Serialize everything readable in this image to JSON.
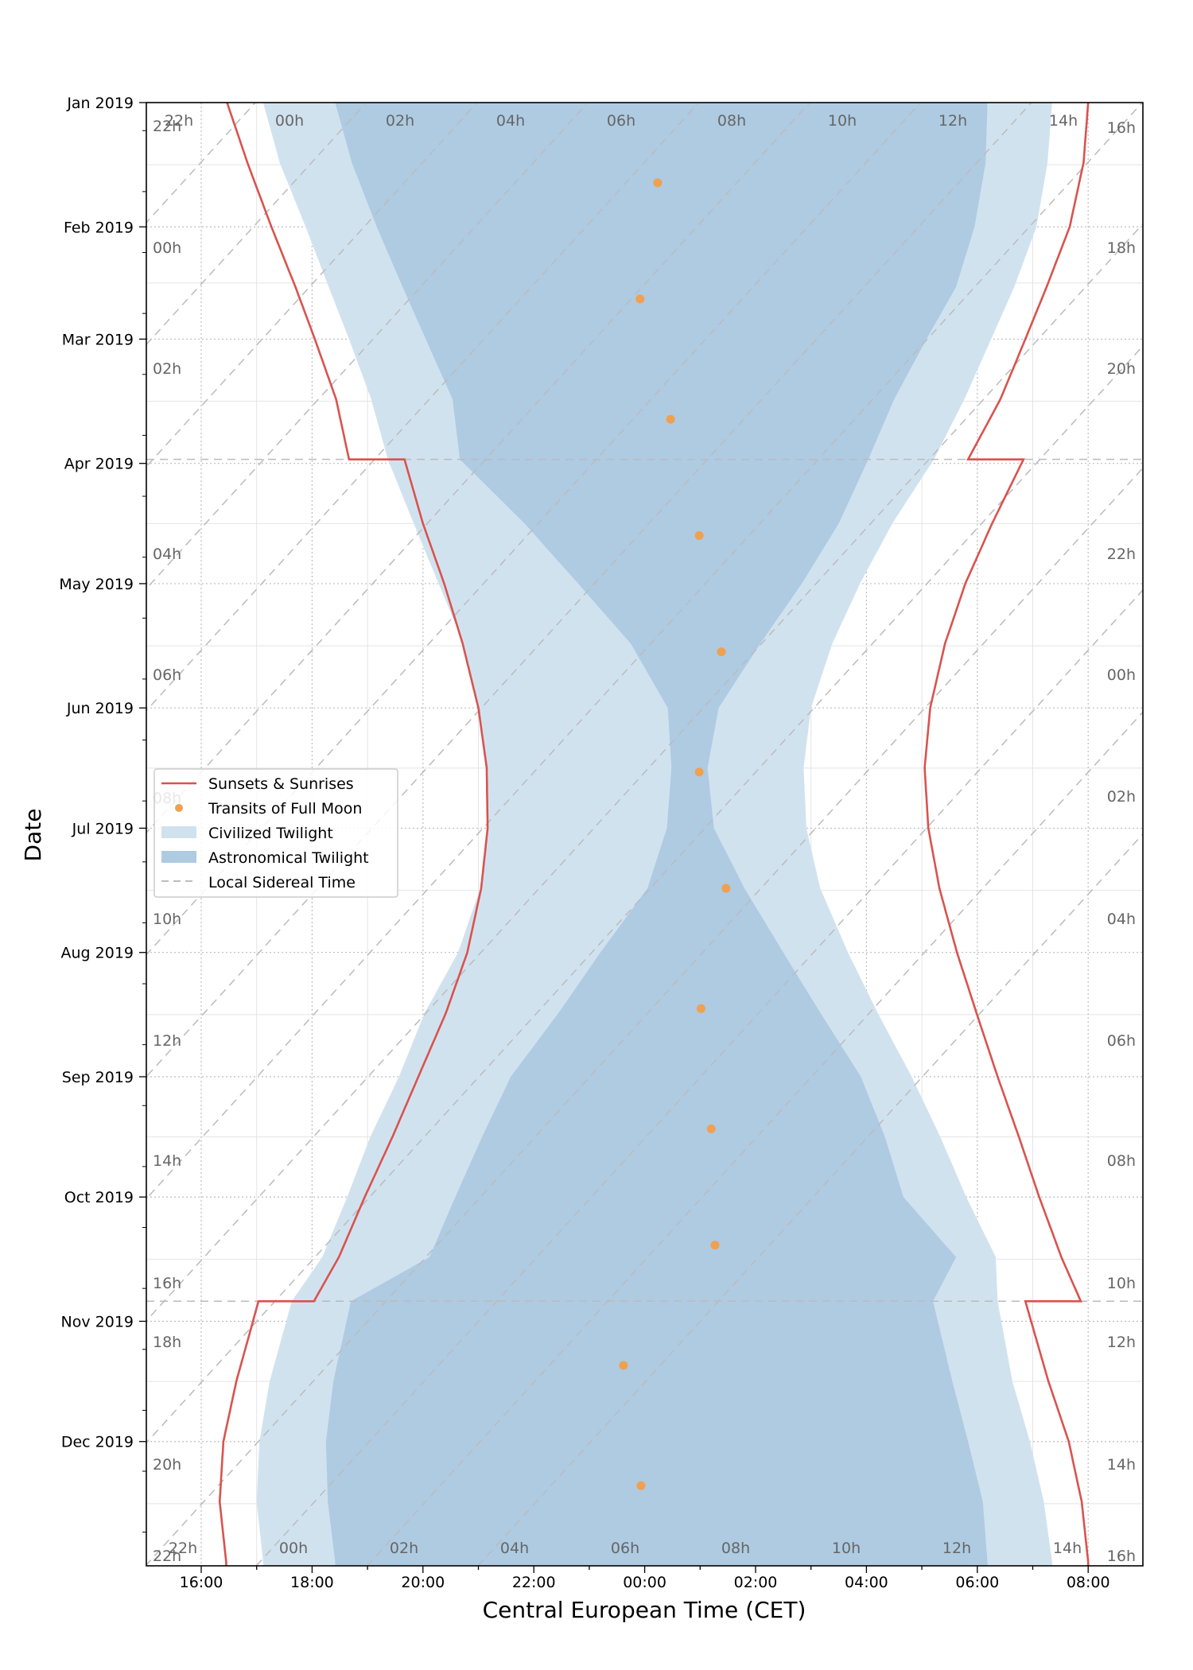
{
  "chart_data": {
    "type": "line",
    "title": "",
    "xlabel": "Central European Time (CET)",
    "ylabel": "Date",
    "x_ticks": [
      "16:00",
      "18:00",
      "20:00",
      "22:00",
      "00:00",
      "02:00",
      "04:00",
      "06:00",
      "08:00"
    ],
    "y_ticks": [
      "Jan 2019",
      "Feb 2019",
      "Mar 2019",
      "Apr 2019",
      "May 2019",
      "Jun 2019",
      "Jul 2019",
      "Aug 2019",
      "Sep 2019",
      "Oct 2019",
      "Nov 2019",
      "Dec 2019"
    ],
    "y_range": [
      "2019-01-01",
      "2019-12-31"
    ],
    "grid": true,
    "legend_position": "center-left",
    "legend": [
      "Sunsets & Sunrises",
      "Transits of Full Moon",
      "Civilized Twilight",
      "Astronomical Twilight",
      "Local Sidereal Time"
    ],
    "colors": {
      "sun": "#d9534f",
      "moon": "#f0a050",
      "civil": "#d1e2ef",
      "astro": "#aecbe2",
      "lst": "#bbbbbb",
      "grid": "#bdbdbd"
    },
    "lst_top_labels": [
      "22h",
      "00h",
      "02h",
      "04h",
      "06h",
      "08h",
      "10h",
      "12h",
      "14h"
    ],
    "lst_bottom_labels": [
      "22h",
      "00h",
      "02h",
      "04h",
      "06h",
      "08h",
      "10h",
      "12h",
      "14h"
    ],
    "lst_left_labels": [
      "22h",
      "00h",
      "02h",
      "04h",
      "06h",
      "08h",
      "10h",
      "12h",
      "14h",
      "16h",
      "18h",
      "20h",
      "22h"
    ],
    "lst_right_labels": [
      "16h",
      "18h",
      "20h",
      "22h",
      "00h",
      "02h",
      "04h",
      "06h",
      "08h",
      "10h",
      "12h",
      "14h",
      "16h"
    ],
    "sunset_dst_extra_hours": 1,
    "sunsets_sunrises": [
      {
        "date": "2019-01-01",
        "sunset": "16:28",
        "sunrise": "08:00"
      },
      {
        "date": "2019-01-16",
        "sunset": "16:50",
        "sunrise": "07:55"
      },
      {
        "date": "2019-02-01",
        "sunset": "17:16",
        "sunrise": "07:40"
      },
      {
        "date": "2019-02-16",
        "sunset": "17:42",
        "sunrise": "07:15"
      },
      {
        "date": "2019-03-01",
        "sunset": "18:03",
        "sunrise": "06:52"
      },
      {
        "date": "2019-03-16",
        "sunset": "18:26",
        "sunrise": "06:25"
      },
      {
        "date": "2019-03-31",
        "sunset": "18:40",
        "sunrise": "05:50"
      },
      {
        "date": "2019-04-16",
        "sunset": "19:00",
        "sunrise": "05:16"
      },
      {
        "date": "2019-05-01",
        "sunset": "19:23",
        "sunrise": "04:47"
      },
      {
        "date": "2019-05-16",
        "sunset": "19:43",
        "sunrise": "04:25"
      },
      {
        "date": "2019-06-01",
        "sunset": "20:00",
        "sunrise": "04:09"
      },
      {
        "date": "2019-06-16",
        "sunset": "20:09",
        "sunrise": "04:03"
      },
      {
        "date": "2019-07-01",
        "sunset": "20:10",
        "sunrise": "04:07"
      },
      {
        "date": "2019-07-16",
        "sunset": "20:03",
        "sunrise": "04:19"
      },
      {
        "date": "2019-08-01",
        "sunset": "19:48",
        "sunrise": "04:38"
      },
      {
        "date": "2019-08-16",
        "sunset": "19:25",
        "sunrise": "04:59"
      },
      {
        "date": "2019-09-01",
        "sunset": "18:55",
        "sunrise": "05:22"
      },
      {
        "date": "2019-09-16",
        "sunset": "18:27",
        "sunrise": "05:45"
      },
      {
        "date": "2019-10-01",
        "sunset": "17:57",
        "sunrise": "06:07"
      },
      {
        "date": "2019-10-16",
        "sunset": "17:29",
        "sunrise": "06:31"
      },
      {
        "date": "2019-10-27",
        "sunset": "17:02",
        "sunrise": "06:52"
      },
      {
        "date": "2019-11-16",
        "sunset": "16:38",
        "sunrise": "07:17"
      },
      {
        "date": "2019-12-01",
        "sunset": "16:24",
        "sunrise": "07:39"
      },
      {
        "date": "2019-12-16",
        "sunset": "16:20",
        "sunrise": "07:53"
      },
      {
        "date": "2019-12-31",
        "sunset": "16:27",
        "sunrise": "08:00"
      }
    ],
    "civil_twilight": [
      {
        "date": "2019-01-01",
        "dusk": "17:07",
        "dawn": "07:21"
      },
      {
        "date": "2019-01-16",
        "dusk": "17:25",
        "dawn": "07:16"
      },
      {
        "date": "2019-02-01",
        "dusk": "17:53",
        "dawn": "07:04"
      },
      {
        "date": "2019-02-16",
        "dusk": "18:18",
        "dawn": "06:40"
      },
      {
        "date": "2019-03-01",
        "dusk": "18:40",
        "dawn": "06:15"
      },
      {
        "date": "2019-03-16",
        "dusk": "19:04",
        "dawn": "05:46"
      },
      {
        "date": "2019-03-31",
        "dusk": "19:22",
        "dawn": "05:13"
      },
      {
        "date": "2019-04-16",
        "dusk": "19:50",
        "dawn": "04:28"
      },
      {
        "date": "2019-05-01",
        "dusk": "20:17",
        "dawn": "03:53"
      },
      {
        "date": "2019-05-16",
        "dusk": "20:44",
        "dawn": "03:23"
      },
      {
        "date": "2019-06-01",
        "dusk": "21:00",
        "dawn": "03:00"
      },
      {
        "date": "2019-06-16",
        "dusk": "21:10",
        "dawn": "02:52"
      },
      {
        "date": "2019-07-01",
        "dusk": "21:10",
        "dawn": "02:55"
      },
      {
        "date": "2019-07-16",
        "dusk": "21:02",
        "dawn": "03:10"
      },
      {
        "date": "2019-08-01",
        "dusk": "20:38",
        "dawn": "03:40"
      },
      {
        "date": "2019-08-16",
        "dusk": "20:02",
        "dawn": "04:12"
      },
      {
        "date": "2019-09-01",
        "dusk": "19:34",
        "dawn": "04:49"
      },
      {
        "date": "2019-09-16",
        "dusk": "19:03",
        "dawn": "05:20"
      },
      {
        "date": "2019-10-01",
        "dusk": "18:38",
        "dawn": "05:48"
      },
      {
        "date": "2019-10-16",
        "dusk": "18:11",
        "dawn": "06:20"
      },
      {
        "date": "2019-10-27",
        "dusk": "17:38",
        "dawn": "06:22"
      },
      {
        "date": "2019-11-16",
        "dusk": "17:14",
        "dawn": "06:38"
      },
      {
        "date": "2019-12-01",
        "dusk": "17:03",
        "dawn": "06:57"
      },
      {
        "date": "2019-12-16",
        "dusk": "17:00",
        "dawn": "07:12"
      },
      {
        "date": "2019-12-31",
        "dusk": "17:07",
        "dawn": "07:21"
      }
    ],
    "astronomical_twilight": [
      {
        "date": "2019-01-01",
        "dusk": "18:25",
        "dawn": "06:11"
      },
      {
        "date": "2019-01-16",
        "dusk": "18:43",
        "dawn": "06:09"
      },
      {
        "date": "2019-02-01",
        "dusk": "19:10",
        "dawn": "05:57"
      },
      {
        "date": "2019-02-16",
        "dusk": "19:38",
        "dawn": "05:37"
      },
      {
        "date": "2019-03-01",
        "dusk": "20:03",
        "dawn": "05:05"
      },
      {
        "date": "2019-03-16",
        "dusk": "20:32",
        "dawn": "04:30"
      },
      {
        "date": "2019-03-31",
        "dusk": "20:40",
        "dawn": "04:02"
      },
      {
        "date": "2019-04-16",
        "dusk": "21:50",
        "dawn": "03:30"
      },
      {
        "date": "2019-05-01",
        "dusk": "22:48",
        "dawn": "02:50"
      },
      {
        "date": "2019-05-16",
        "dusk": "23:45",
        "dawn": "02:05"
      },
      {
        "date": "2019-06-01",
        "dusk": "00:25",
        "dawn": "01:20"
      },
      {
        "date": "2019-06-16",
        "dusk": "00:29",
        "dawn": "01:08"
      },
      {
        "date": "2019-07-01",
        "dusk": "00:24",
        "dawn": "01:15"
      },
      {
        "date": "2019-07-16",
        "dusk": "00:03",
        "dawn": "01:48"
      },
      {
        "date": "2019-08-01",
        "dusk": "23:12",
        "dawn": "02:30"
      },
      {
        "date": "2019-08-16",
        "dusk": "22:27",
        "dawn": "03:10"
      },
      {
        "date": "2019-09-01",
        "dusk": "21:35",
        "dawn": "03:54"
      },
      {
        "date": "2019-09-16",
        "dusk": "21:04",
        "dawn": "04:20"
      },
      {
        "date": "2019-10-01",
        "dusk": "20:35",
        "dawn": "04:40"
      },
      {
        "date": "2019-10-16",
        "dusk": "20:07",
        "dawn": "05:37"
      },
      {
        "date": "2019-10-27",
        "dusk": "18:42",
        "dawn": "05:12"
      },
      {
        "date": "2019-11-16",
        "dusk": "18:23",
        "dawn": "05:33"
      },
      {
        "date": "2019-12-01",
        "dusk": "18:15",
        "dawn": "05:50"
      },
      {
        "date": "2019-12-16",
        "dusk": "18:17",
        "dawn": "06:06"
      },
      {
        "date": "2019-12-31",
        "dusk": "18:25",
        "dawn": "06:11"
      }
    ],
    "full_moon_transits": [
      {
        "date": "2019-01-21",
        "time": "00:14"
      },
      {
        "date": "2019-02-19",
        "time": "23:55"
      },
      {
        "date": "2019-03-21",
        "time": "00:28"
      },
      {
        "date": "2019-04-19",
        "time": "00:59"
      },
      {
        "date": "2019-05-18",
        "time": "01:23"
      },
      {
        "date": "2019-06-17",
        "time": "00:59"
      },
      {
        "date": "2019-07-16",
        "time": "01:28"
      },
      {
        "date": "2019-08-15",
        "time": "01:01"
      },
      {
        "date": "2019-09-14",
        "time": "01:12"
      },
      {
        "date": "2019-10-13",
        "time": "01:16"
      },
      {
        "date": "2019-11-12",
        "time": "23:37"
      },
      {
        "date": "2019-12-12",
        "time": "23:56"
      }
    ]
  }
}
